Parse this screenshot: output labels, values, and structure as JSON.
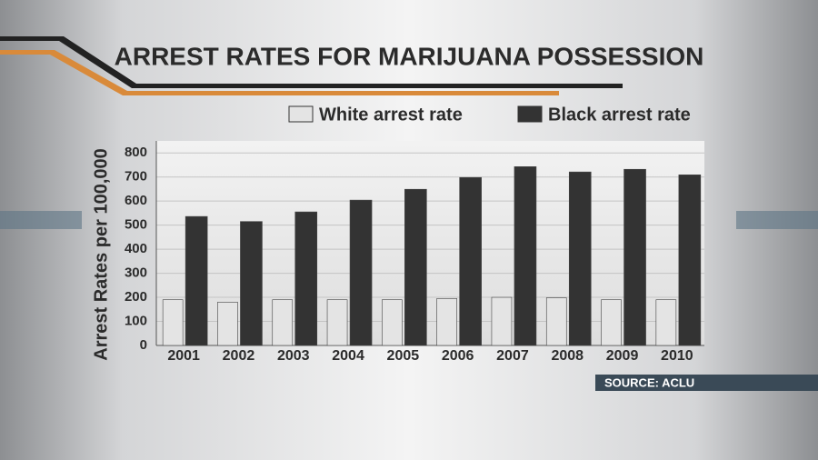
{
  "chart_data": {
    "type": "bar",
    "title": "ARREST RATES FOR MARIJUANA POSSESSION",
    "y_label": "Arrest Rates per 100,000",
    "categories": [
      "2001",
      "2002",
      "2003",
      "2004",
      "2005",
      "2006",
      "2007",
      "2008",
      "2009",
      "2010"
    ],
    "series": [
      {
        "name": "White arrest rate",
        "color": "#e4e4e4",
        "values": [
          190,
          180,
          190,
          190,
          190,
          195,
          200,
          198,
          190,
          190
        ]
      },
      {
        "name": "Black arrest rate",
        "color": "#333333",
        "values": [
          536,
          515,
          555,
          604,
          649,
          698,
          743,
          721,
          732,
          709
        ]
      }
    ],
    "ylim": [
      0,
      850
    ],
    "yticks": [
      0,
      100,
      200,
      300,
      400,
      500,
      600,
      700,
      800
    ],
    "grid": true,
    "source": "SOURCE: ACLU"
  }
}
